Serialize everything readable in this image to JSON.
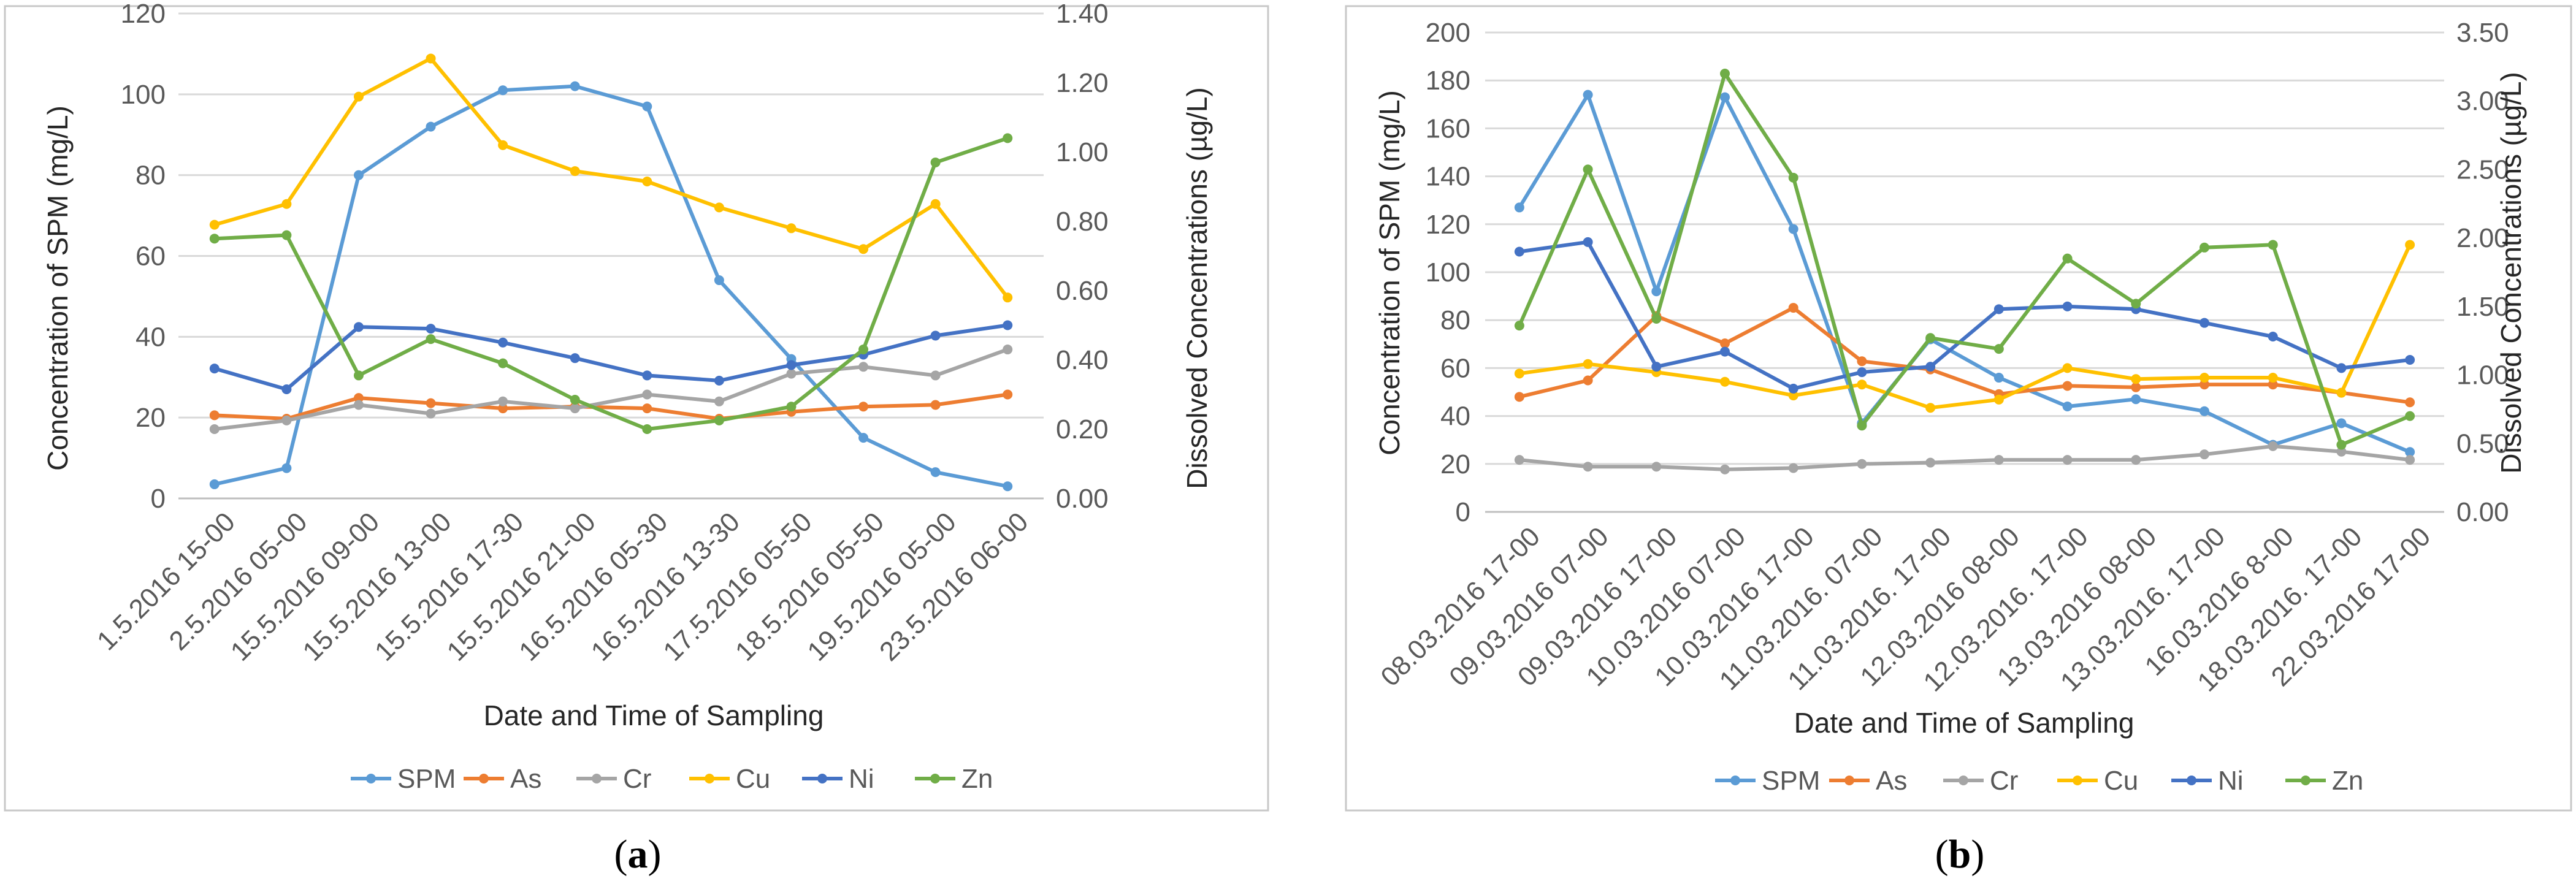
{
  "chart_data": [
    {
      "type": "line",
      "panel_label": "a",
      "xlabel": "Date and Time of Sampling",
      "ylabel": "Concentration of SPM (mg/L)",
      "ylabel_right": "Dissolved Concentrations (µg/L)",
      "ylim": [
        0,
        120
      ],
      "ylim_right": [
        0,
        1.4
      ],
      "yticks": [
        "0",
        "20",
        "40",
        "60",
        "80",
        "100",
        "120"
      ],
      "yticks_right": [
        "0.00",
        "0.20",
        "0.40",
        "0.60",
        "0.80",
        "1.00",
        "1.20",
        "1.40"
      ],
      "categories": [
        "1.5.2016 15-00",
        "2.5.2016 05-00",
        "15.5.2016 09-00",
        "15.5.2016 13-00",
        "15.5.2016 17-30",
        "15.5.2016 21-00",
        "16.5.2016 05-30",
        "16.5.2016 13-30",
        "17.5.2016 05-50",
        "18.5.2016 05-50",
        "19.5.2016 05-00",
        "23.5.2016 06-00"
      ],
      "series": [
        {
          "name": "SPM",
          "axis": "left",
          "color": "#5B9BD5",
          "values": [
            3.5,
            7.5,
            80,
            92,
            101,
            102,
            97,
            54,
            34.5,
            15,
            6.5,
            3
          ]
        },
        {
          "name": "As",
          "axis": "right",
          "color": "#ED7D31",
          "values": [
            0.24,
            0.23,
            0.29,
            0.275,
            0.26,
            0.265,
            0.26,
            0.23,
            0.25,
            0.265,
            0.27,
            0.3
          ]
        },
        {
          "name": "Cr",
          "axis": "right",
          "color": "#A5A5A5",
          "values": [
            0.2,
            0.225,
            0.27,
            0.245,
            0.28,
            0.26,
            0.3,
            0.28,
            0.36,
            0.38,
            0.355,
            0.43
          ]
        },
        {
          "name": "Cu",
          "axis": "right",
          "color": "#FFC000",
          "values": [
            0.79,
            0.85,
            1.16,
            1.27,
            1.02,
            0.945,
            0.915,
            0.84,
            0.78,
            0.72,
            0.85,
            0.58
          ]
        },
        {
          "name": "Ni",
          "axis": "right",
          "color": "#4472C4",
          "values": [
            0.375,
            0.315,
            0.495,
            0.49,
            0.45,
            0.405,
            0.355,
            0.34,
            0.385,
            0.415,
            0.47,
            0.5
          ]
        },
        {
          "name": "Zn",
          "axis": "right",
          "color": "#70AD47",
          "values": [
            0.75,
            0.76,
            0.355,
            0.46,
            0.39,
            0.285,
            0.2,
            0.225,
            0.265,
            0.43,
            0.97,
            1.04
          ]
        }
      ]
    },
    {
      "type": "line",
      "panel_label": "b",
      "xlabel": "Date and Time of Sampling",
      "ylabel": "Concentration of SPM (mg/L)",
      "ylabel_right": "Dissolved Concentrations (µg/L)",
      "ylim": [
        0,
        200
      ],
      "ylim_right": [
        0,
        3.5
      ],
      "yticks": [
        "0",
        "20",
        "40",
        "60",
        "80",
        "100",
        "120",
        "140",
        "160",
        "180",
        "200"
      ],
      "yticks_right": [
        "0.00",
        "0.50",
        "1.00",
        "1.50",
        "2.00",
        "2.50",
        "3.00",
        "3.50"
      ],
      "categories": [
        "08.03.2016 17-00",
        "09.03.2016 07-00",
        "09.03.2016 17-00",
        "10.03.2016 07-00",
        "10.03.2016 17-00",
        "11.03.2016. 07-00",
        "11.03.2016. 17-00",
        "12.03.2016 08-00",
        "12.03.2016. 17-00",
        "13.03.2016 08-00",
        "13.03.2016. 17-00",
        "16.03.2016 8-00",
        "18.03.2016. 17-00",
        "22.03.2016 17-00"
      ],
      "series": [
        {
          "name": "SPM",
          "axis": "left",
          "color": "#5B9BD5",
          "values": [
            127,
            174,
            92,
            173,
            118,
            37,
            72,
            56,
            44,
            47,
            42,
            28,
            37,
            25
          ]
        },
        {
          "name": "As",
          "axis": "right",
          "color": "#ED7D31",
          "values": [
            0.84,
            0.96,
            1.43,
            1.23,
            1.49,
            1.1,
            1.04,
            0.86,
            0.92,
            0.91,
            0.93,
            0.93,
            0.87,
            0.8
          ]
        },
        {
          "name": "Cr",
          "axis": "right",
          "color": "#A5A5A5",
          "values": [
            0.38,
            0.33,
            0.33,
            0.31,
            0.32,
            0.35,
            0.36,
            0.38,
            0.38,
            0.38,
            0.42,
            0.48,
            0.44,
            0.38
          ]
        },
        {
          "name": "Cu",
          "axis": "right",
          "color": "#FFC000",
          "values": [
            1.01,
            1.08,
            1.02,
            0.95,
            0.85,
            0.93,
            0.76,
            0.82,
            1.05,
            0.97,
            0.98,
            0.98,
            0.87,
            1.95
          ]
        },
        {
          "name": "Ni",
          "axis": "right",
          "color": "#4472C4",
          "values": [
            1.9,
            1.97,
            1.06,
            1.17,
            0.9,
            1.02,
            1.06,
            1.48,
            1.5,
            1.48,
            1.38,
            1.28,
            1.05,
            1.11
          ]
        },
        {
          "name": "Zn",
          "axis": "right",
          "color": "#70AD47",
          "values": [
            1.36,
            2.5,
            1.41,
            3.2,
            2.44,
            0.63,
            1.27,
            1.19,
            1.85,
            1.52,
            1.93,
            1.95,
            0.49,
            0.7
          ]
        }
      ]
    }
  ]
}
